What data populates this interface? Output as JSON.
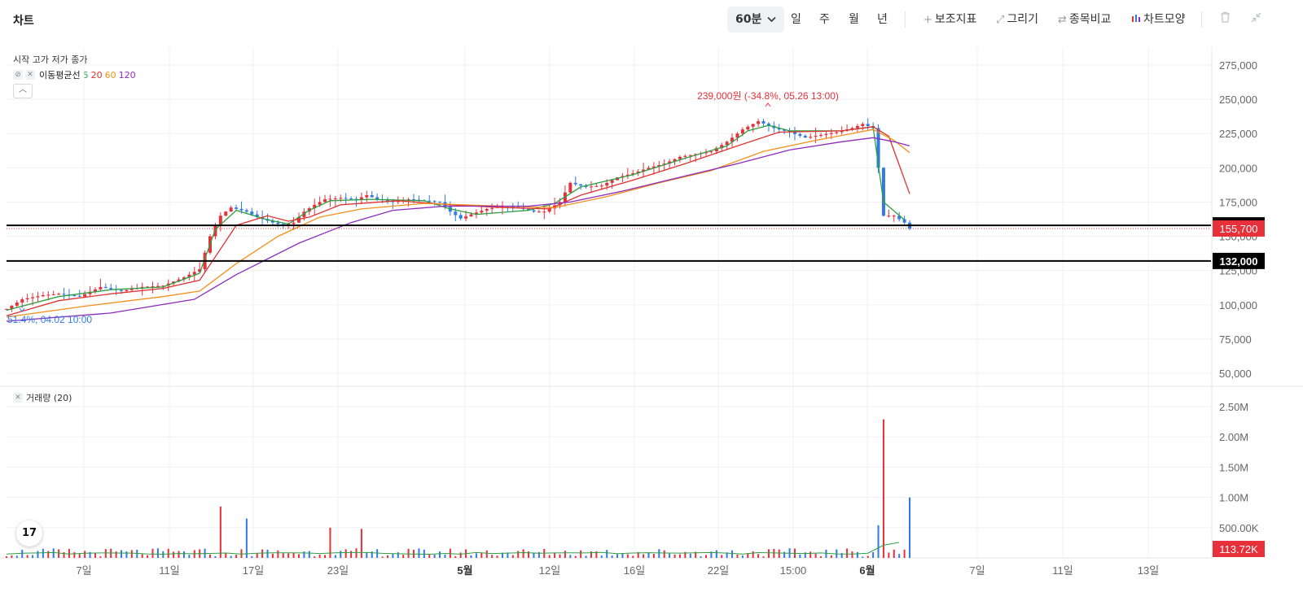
{
  "header": {
    "title": "차트",
    "timeframes": [
      {
        "label": "60분",
        "active": true
      },
      {
        "label": "일",
        "active": false
      },
      {
        "label": "주",
        "active": false
      },
      {
        "label": "월",
        "active": false
      },
      {
        "label": "년",
        "active": false
      }
    ],
    "tools": [
      {
        "label": "보조지표",
        "icon": "plus-icon"
      },
      {
        "label": "그리기",
        "icon": "pencil-icon"
      },
      {
        "label": "종목비교",
        "icon": "compare-arrows-icon"
      },
      {
        "label": "차트모양",
        "icon": "candlestick-icon"
      }
    ],
    "icons": {
      "delete": "trash-icon",
      "collapse": "collapse-arrows-icon",
      "dropdown": "chevron-down-icon"
    }
  },
  "legend": {
    "ohlc": "시작 고가 저가 종가",
    "ma_label": "이동평균선",
    "ma_periods": [
      {
        "label": "5",
        "color": "#2e9e44"
      },
      {
        "label": "20",
        "color": "#e0312f"
      },
      {
        "label": "60",
        "color": "#f39019"
      },
      {
        "label": "120",
        "color": "#8e2bbf"
      }
    ],
    "icons": {
      "visibility": "eye-slash-icon",
      "close": "close-icon",
      "collapse": "chevron-up-icon"
    }
  },
  "volume_legend": {
    "label": "거래량 (20)",
    "icon": "close-icon"
  },
  "annotations": {
    "high": "239,000원 (-34.8%, 05.26 13:00)",
    "low": "51.4%, 04.02 10:00"
  },
  "colors": {
    "up": "#e8303a",
    "down": "#2f7ae5",
    "grid": "#f0f1f3",
    "current_price": "#e8303a",
    "hline": "#000000"
  },
  "chart_data": {
    "type": "candlestick",
    "price_axis": {
      "ticks": [
        "275,000",
        "250,000",
        "225,000",
        "200,000",
        "175,000",
        "150,000",
        "125,000",
        "100,000",
        "75,000",
        "50,000"
      ],
      "range": [
        45000,
        285000
      ]
    },
    "volume_axis": {
      "ticks": [
        "2.50M",
        "2.00M",
        "1.50M",
        "1.00M",
        "500.00K"
      ],
      "range": [
        0,
        2850000
      ]
    },
    "x_ticks": [
      {
        "label": "7일",
        "bold": false
      },
      {
        "label": "11일",
        "bold": false
      },
      {
        "label": "17일",
        "bold": false
      },
      {
        "label": "23일",
        "bold": false
      },
      {
        "label": "5월",
        "bold": true
      },
      {
        "label": "12일",
        "bold": false
      },
      {
        "label": "16일",
        "bold": false
      },
      {
        "label": "22일",
        "bold": false
      },
      {
        "label": "15:00",
        "bold": false
      },
      {
        "label": "6월",
        "bold": true
      },
      {
        "label": "7일",
        "bold": false
      },
      {
        "label": "11일",
        "bold": false
      },
      {
        "label": "13일",
        "bold": false
      }
    ],
    "horizontal_lines": [
      {
        "value": 158000,
        "label": "158,000"
      },
      {
        "value": 132000,
        "label": "132,000"
      }
    ],
    "current_price": {
      "value": 155700,
      "label": "155,700"
    },
    "current_volume": {
      "label": "113.72K"
    },
    "price_path": [
      [
        0,
        97000
      ],
      [
        3,
        104000
      ],
      [
        7,
        107000
      ],
      [
        10,
        108000
      ],
      [
        14,
        106000
      ],
      [
        18,
        113000
      ],
      [
        22,
        110000
      ],
      [
        26,
        113000
      ],
      [
        30,
        114000
      ],
      [
        34,
        120000
      ],
      [
        37,
        126000
      ],
      [
        39,
        150000
      ],
      [
        41,
        165000
      ],
      [
        43,
        171000
      ],
      [
        46,
        168000
      ],
      [
        48,
        164000
      ],
      [
        51,
        160000
      ],
      [
        53,
        158000
      ],
      [
        55,
        160000
      ],
      [
        57,
        168000
      ],
      [
        59,
        173000
      ],
      [
        61,
        177000
      ],
      [
        64,
        178000
      ],
      [
        67,
        177000
      ],
      [
        69,
        180000
      ],
      [
        71,
        177000
      ],
      [
        74,
        175000
      ],
      [
        77,
        177000
      ],
      [
        80,
        176000
      ],
      [
        83,
        175000
      ],
      [
        85,
        168000
      ],
      [
        87,
        163000
      ],
      [
        89,
        166000
      ],
      [
        92,
        170000
      ],
      [
        95,
        172000
      ],
      [
        98,
        171000
      ],
      [
        101,
        168000
      ],
      [
        103,
        168000
      ],
      [
        106,
        175000
      ],
      [
        108,
        189000
      ],
      [
        111,
        186000
      ],
      [
        114,
        187000
      ],
      [
        117,
        193000
      ],
      [
        120,
        196000
      ],
      [
        123,
        200000
      ],
      [
        126,
        203000
      ],
      [
        129,
        208000
      ],
      [
        132,
        210000
      ],
      [
        135,
        212000
      ],
      [
        138,
        219000
      ],
      [
        141,
        228000
      ],
      [
        144,
        234000
      ],
      [
        147,
        229000
      ],
      [
        150,
        226000
      ],
      [
        153,
        222000
      ],
      [
        156,
        224000
      ],
      [
        159,
        226000
      ],
      [
        162,
        229000
      ],
      [
        164,
        232000
      ],
      [
        166,
        229000
      ],
      [
        167,
        200000
      ],
      [
        168,
        165000
      ],
      [
        170,
        165000
      ],
      [
        172,
        160000
      ],
      [
        173,
        155700
      ]
    ],
    "ma_series": {
      "ma5": [
        [
          0,
          96000
        ],
        [
          10,
          106000
        ],
        [
          20,
          111000
        ],
        [
          30,
          113000
        ],
        [
          37,
          123000
        ],
        [
          40,
          155000
        ],
        [
          44,
          169000
        ],
        [
          50,
          162000
        ],
        [
          54,
          159000
        ],
        [
          58,
          169000
        ],
        [
          62,
          176000
        ],
        [
          70,
          177000
        ],
        [
          80,
          176000
        ],
        [
          85,
          170000
        ],
        [
          90,
          166000
        ],
        [
          100,
          169000
        ],
        [
          105,
          174000
        ],
        [
          110,
          186000
        ],
        [
          120,
          195000
        ],
        [
          130,
          207000
        ],
        [
          138,
          216000
        ],
        [
          142,
          227000
        ],
        [
          146,
          231000
        ],
        [
          150,
          227000
        ],
        [
          160,
          227000
        ],
        [
          166,
          230000
        ],
        [
          168,
          175000
        ],
        [
          172,
          162000
        ]
      ],
      "ma20": [
        [
          0,
          92000
        ],
        [
          10,
          103000
        ],
        [
          20,
          108000
        ],
        [
          30,
          112000
        ],
        [
          37,
          118000
        ],
        [
          40,
          135000
        ],
        [
          44,
          158000
        ],
        [
          50,
          165000
        ],
        [
          54,
          161000
        ],
        [
          58,
          164000
        ],
        [
          64,
          173000
        ],
        [
          75,
          176000
        ],
        [
          85,
          173000
        ],
        [
          95,
          171000
        ],
        [
          104,
          170000
        ],
        [
          110,
          180000
        ],
        [
          120,
          191000
        ],
        [
          130,
          203000
        ],
        [
          140,
          216000
        ],
        [
          148,
          226000
        ],
        [
          160,
          227000
        ],
        [
          166,
          230000
        ],
        [
          169,
          223000
        ],
        [
          173,
          181000
        ]
      ],
      "ma60": [
        [
          0,
          91000
        ],
        [
          15,
          99000
        ],
        [
          30,
          106000
        ],
        [
          37,
          110000
        ],
        [
          44,
          130000
        ],
        [
          52,
          150000
        ],
        [
          60,
          164000
        ],
        [
          68,
          170000
        ],
        [
          80,
          174000
        ],
        [
          95,
          172000
        ],
        [
          105,
          171000
        ],
        [
          115,
          179000
        ],
        [
          125,
          189000
        ],
        [
          135,
          198000
        ],
        [
          145,
          212000
        ],
        [
          155,
          220000
        ],
        [
          166,
          228000
        ],
        [
          170,
          220000
        ],
        [
          173,
          211000
        ]
      ],
      "ma120": [
        [
          0,
          88000
        ],
        [
          20,
          94000
        ],
        [
          36,
          104000
        ],
        [
          44,
          122000
        ],
        [
          56,
          145000
        ],
        [
          66,
          160000
        ],
        [
          74,
          169000
        ],
        [
          84,
          172000
        ],
        [
          100,
          172000
        ],
        [
          108,
          175000
        ],
        [
          118,
          183000
        ],
        [
          130,
          194000
        ],
        [
          140,
          203000
        ],
        [
          150,
          213000
        ],
        [
          160,
          219000
        ],
        [
          166,
          222000
        ],
        [
          170,
          219000
        ],
        [
          173,
          216000
        ]
      ]
    },
    "volume_spikes": [
      {
        "index": 41,
        "value": 850000,
        "dir": "up"
      },
      {
        "index": 46,
        "value": 650000,
        "dir": "down"
      },
      {
        "index": 62,
        "value": 500000,
        "dir": "up"
      },
      {
        "index": 68,
        "value": 480000,
        "dir": "up"
      },
      {
        "index": 168,
        "value": 2290000,
        "dir": "up"
      },
      {
        "index": 167,
        "value": 540000,
        "dir": "down"
      },
      {
        "index": 173,
        "value": 1000000,
        "dir": "down"
      }
    ]
  }
}
